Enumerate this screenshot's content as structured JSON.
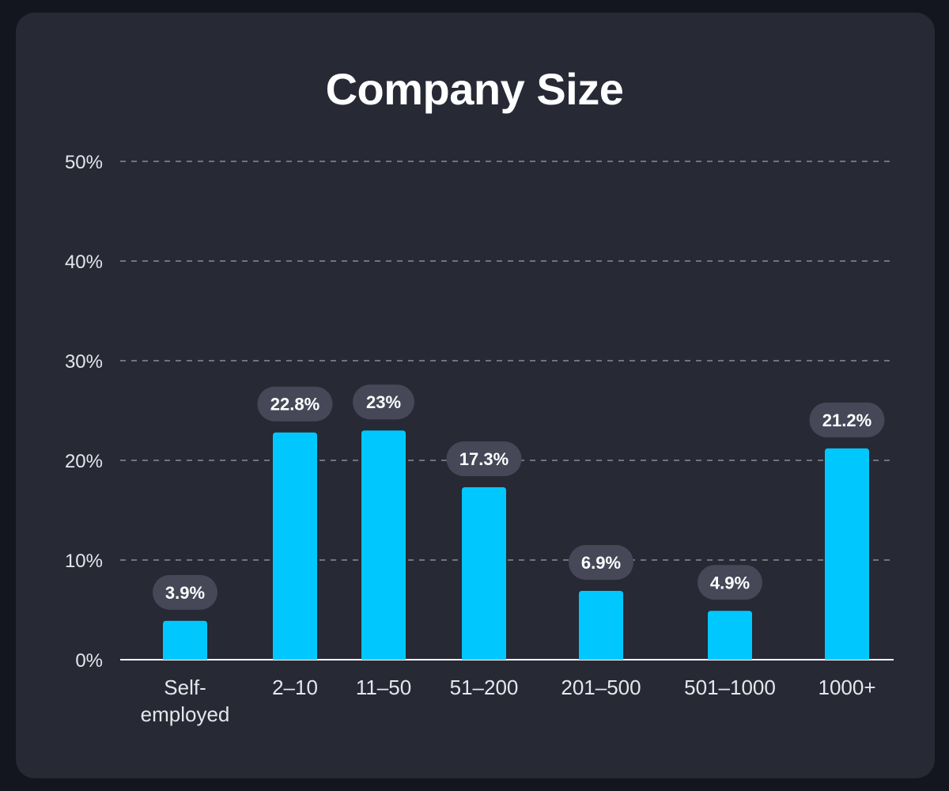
{
  "chart_data": {
    "type": "bar",
    "title": "Company Size",
    "categories": [
      "Self-employed",
      "2–10",
      "11–50",
      "51–200",
      "201–500",
      "501–1000",
      "1000+"
    ],
    "category_lines": [
      [
        "Self-",
        "employed"
      ],
      [
        "2–10"
      ],
      [
        "11–50"
      ],
      [
        "51–200"
      ],
      [
        "201–500"
      ],
      [
        "501–1000"
      ],
      [
        "1000+"
      ]
    ],
    "values": [
      3.9,
      22.8,
      23,
      17.3,
      6.9,
      4.9,
      21.2
    ],
    "value_labels": [
      "3.9%",
      "22.8%",
      "23%",
      "17.3%",
      "6.9%",
      "4.9%",
      "21.2%"
    ],
    "y_ticks": [
      0,
      10,
      20,
      30,
      40,
      50
    ],
    "y_tick_labels": [
      "0%",
      "10%",
      "20%",
      "30%",
      "40%",
      "50%"
    ],
    "ylim": [
      0,
      50
    ],
    "grid": true,
    "xlabel": "",
    "ylabel": "",
    "bar_color": "#00c8ff",
    "label_bg_color": "#464858"
  }
}
